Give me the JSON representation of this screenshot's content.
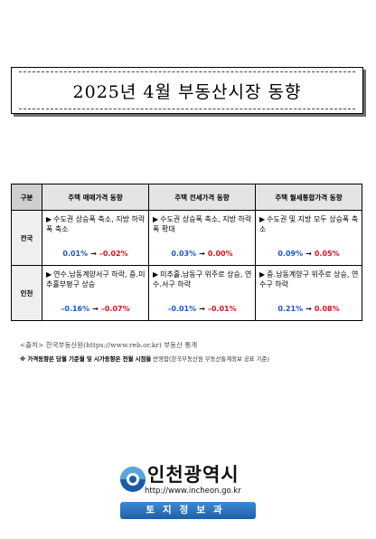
{
  "title": "2025년 4월 부동산시장 동향",
  "table": {
    "header_region": "구분",
    "columns": [
      "주택 매매가격 동향",
      "주택 전세가격 동향",
      "주택 월세통합가격 동향"
    ],
    "rows": [
      {
        "region": "전국",
        "cells": [
          {
            "marker": "▶",
            "desc": "수도권 상승폭 축소, 지방 하락폭 축소",
            "from": "0.01%",
            "arrow": "→",
            "to": "–0.02%",
            "to_color": "red"
          },
          {
            "marker": "▶",
            "desc": "수도권 상승폭 축소, 지방 하락폭 확대",
            "from": "0.03%",
            "arrow": "→",
            "to": "0.00%",
            "to_color": "red"
          },
          {
            "marker": "▶",
            "desc": "수도권 및 지방 모두 상승폭 축소",
            "from": "0.09%",
            "arrow": "→",
            "to": "0.05%",
            "to_color": "red"
          }
        ]
      },
      {
        "region": "인천",
        "cells": [
          {
            "marker": "▶",
            "desc": "연수․남동계양서구 하락, 중․미추홀부평구 상승",
            "from": "–0.16%",
            "arrow": "→",
            "to": "–0.07%",
            "to_color": "red"
          },
          {
            "marker": "▶",
            "desc": "미추홀․남동구 위주로 상승, 연수․서구 하락",
            "from": "–0.01%",
            "arrow": "→",
            "to": "–0.01%",
            "to_color": "red"
          },
          {
            "marker": "▶",
            "desc": "중․남동계양구 위주로 상승, 연수구 하락",
            "from": "0.21%",
            "arrow": "→",
            "to": "0.08%",
            "to_color": "red"
          }
        ]
      }
    ]
  },
  "source_note": "<출처> 한국부동산원(https://www.reb.or.kr) 부동산 통계",
  "remark_note": {
    "prefix": "※ 가격동향은 당월 기준월 및 시가동향은 전월 시점을",
    "suffix": " 반영함(한국부동산원 부동산통계정보 공표 기준)"
  },
  "logo": {
    "name": "인천광역시",
    "url": "http://www.incheon.go.kr",
    "banner": "토지정보과"
  },
  "colors": {
    "increase_down": "#e0101e",
    "value_blue": "#1a56c8",
    "header_gray": "#e4e4e4",
    "logo_blue": "#1c5ba8"
  }
}
